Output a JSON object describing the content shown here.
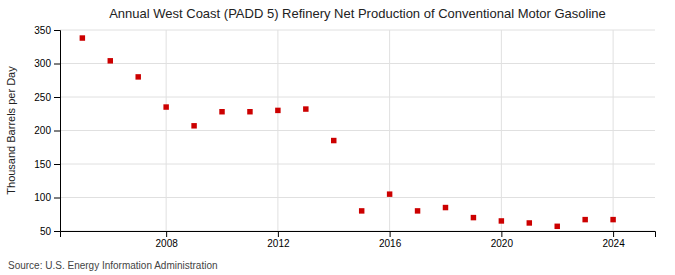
{
  "chart_data": {
    "type": "scatter",
    "title": "Annual West Coast (PADD 5) Refinery Net Production of Conventional Motor Gasoline",
    "ylabel": "Thousand Barrels per Day",
    "source": "Source: U.S. Energy Information Administration",
    "x": [
      2005,
      2006,
      2007,
      2008,
      2009,
      2010,
      2011,
      2012,
      2013,
      2014,
      2015,
      2016,
      2017,
      2018,
      2019,
      2020,
      2021,
      2022,
      2023,
      2024
    ],
    "values": [
      338,
      304,
      280,
      235,
      207,
      228,
      228,
      230,
      232,
      185,
      80,
      105,
      80,
      85,
      70,
      65,
      62,
      57,
      67,
      67
    ],
    "color": "#cc0000",
    "marker": "square",
    "xlim": [
      2004.2,
      2025.5
    ],
    "xticks": [
      2008,
      2012,
      2016,
      2020,
      2024
    ],
    "ylim": [
      50,
      350
    ],
    "yticks": [
      50,
      100,
      150,
      200,
      250,
      300,
      350
    ],
    "grid": true
  }
}
